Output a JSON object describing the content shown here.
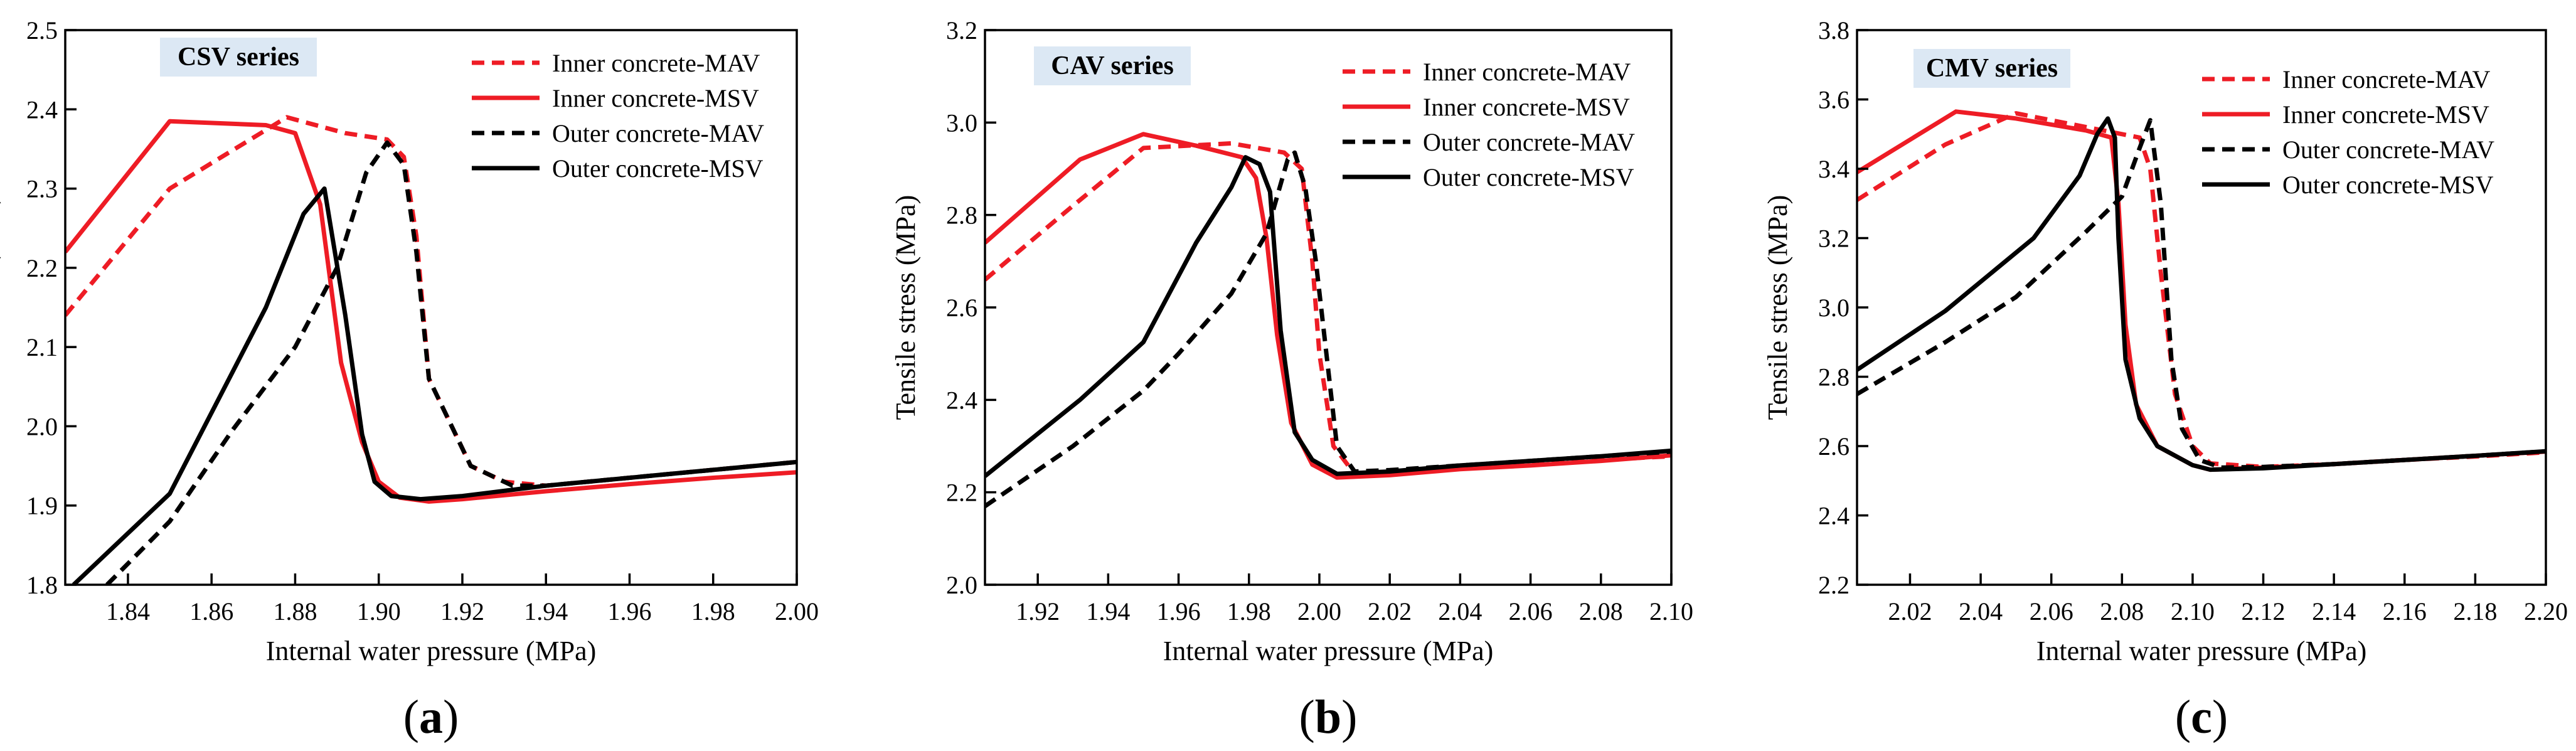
{
  "chart_data": [
    {
      "type": "line",
      "panel_label": "(a)",
      "series_label": "CSV series",
      "xlabel": "Internal water pressure (MPa)",
      "ylabel": "Tensile stress (MPa)",
      "xlim": [
        1.825,
        2.0
      ],
      "ylim": [
        1.8,
        2.5
      ],
      "xticks": [
        "1.84",
        "1.86",
        "1.88",
        "1.90",
        "1.92",
        "1.94",
        "1.96",
        "1.98",
        "2.00"
      ],
      "yticks": [
        "1.8",
        "1.9",
        "2.0",
        "2.1",
        "2.2",
        "2.3",
        "2.4",
        "2.5"
      ],
      "legend_position": "top-right",
      "series": [
        {
          "name": "Inner concrete-MAV",
          "color": "#ee1c25",
          "dash": "dashed",
          "points": [
            [
              1.825,
              2.14
            ],
            [
              1.85,
              2.3
            ],
            [
              1.878,
              2.39
            ],
            [
              1.892,
              2.37
            ],
            [
              1.902,
              2.362
            ],
            [
              1.906,
              2.34
            ],
            [
              1.909,
              2.24
            ],
            [
              1.912,
              2.06
            ],
            [
              1.922,
              1.95
            ],
            [
              1.93,
              1.93
            ],
            [
              1.94,
              1.925
            ],
            [
              1.96,
              1.935
            ],
            [
              1.98,
              1.945
            ],
            [
              2.0,
              1.955
            ]
          ]
        },
        {
          "name": "Inner concrete-MSV",
          "color": "#ee1c25",
          "dash": "solid",
          "points": [
            [
              1.825,
              2.22
            ],
            [
              1.85,
              2.385
            ],
            [
              1.873,
              2.38
            ],
            [
              1.88,
              2.37
            ],
            [
              1.886,
              2.28
            ],
            [
              1.891,
              2.08
            ],
            [
              1.896,
              1.98
            ],
            [
              1.9,
              1.93
            ],
            [
              1.905,
              1.91
            ],
            [
              1.912,
              1.905
            ],
            [
              1.92,
              1.908
            ],
            [
              1.94,
              1.918
            ],
            [
              1.96,
              1.927
            ],
            [
              1.98,
              1.935
            ],
            [
              2.0,
              1.942
            ]
          ]
        },
        {
          "name": "Outer concrete-MAV",
          "color": "#000000",
          "dash": "dashed",
          "points": [
            [
              1.835,
              1.8
            ],
            [
              1.85,
              1.88
            ],
            [
              1.865,
              1.995
            ],
            [
              1.88,
              2.1
            ],
            [
              1.89,
              2.2
            ],
            [
              1.897,
              2.32
            ],
            [
              1.902,
              2.358
            ],
            [
              1.906,
              2.33
            ],
            [
              1.909,
              2.22
            ],
            [
              1.912,
              2.06
            ],
            [
              1.922,
              1.95
            ],
            [
              1.932,
              1.925
            ],
            [
              1.94,
              1.925
            ],
            [
              1.96,
              1.935
            ],
            [
              1.98,
              1.945
            ],
            [
              2.0,
              1.955
            ]
          ]
        },
        {
          "name": "Outer concrete-MSV",
          "color": "#000000",
          "dash": "solid",
          "points": [
            [
              1.827,
              1.8
            ],
            [
              1.85,
              1.915
            ],
            [
              1.873,
              2.15
            ],
            [
              1.882,
              2.268
            ],
            [
              1.887,
              2.3
            ],
            [
              1.892,
              2.14
            ],
            [
              1.896,
              1.99
            ],
            [
              1.899,
              1.93
            ],
            [
              1.903,
              1.912
            ],
            [
              1.91,
              1.908
            ],
            [
              1.92,
              1.912
            ],
            [
              1.94,
              1.925
            ],
            [
              1.96,
              1.935
            ],
            [
              1.98,
              1.945
            ],
            [
              2.0,
              1.955
            ]
          ]
        }
      ]
    },
    {
      "type": "line",
      "panel_label": "(b)",
      "series_label": "CAV series",
      "xlabel": "Internal water pressure (MPa)",
      "ylabel": "Tensile stress (MPa)",
      "xlim": [
        1.905,
        2.1
      ],
      "ylim": [
        2.0,
        3.2
      ],
      "xticks": [
        "1.92",
        "1.94",
        "1.96",
        "1.98",
        "2.00",
        "2.02",
        "2.04",
        "2.06",
        "2.08",
        "2.10"
      ],
      "yticks": [
        "2.0",
        "2.2",
        "2.4",
        "2.6",
        "2.8",
        "3.0",
        "3.2"
      ],
      "legend_position": "top-right",
      "series": [
        {
          "name": "Inner concrete-MAV",
          "color": "#ee1c25",
          "dash": "dashed",
          "points": [
            [
              1.905,
              2.66
            ],
            [
              1.93,
              2.82
            ],
            [
              1.95,
              2.945
            ],
            [
              1.975,
              2.955
            ],
            [
              1.99,
              2.935
            ],
            [
              1.995,
              2.9
            ],
            [
              1.998,
              2.7
            ],
            [
              2.0,
              2.5
            ],
            [
              2.004,
              2.3
            ],
            [
              2.01,
              2.24
            ],
            [
              2.02,
              2.245
            ],
            [
              2.04,
              2.255
            ],
            [
              2.06,
              2.262
            ],
            [
              2.08,
              2.27
            ],
            [
              2.1,
              2.278
            ]
          ]
        },
        {
          "name": "Inner concrete-MSV",
          "color": "#ee1c25",
          "dash": "solid",
          "points": [
            [
              1.905,
              2.74
            ],
            [
              1.932,
              2.92
            ],
            [
              1.95,
              2.975
            ],
            [
              1.965,
              2.95
            ],
            [
              1.978,
              2.925
            ],
            [
              1.982,
              2.88
            ],
            [
              1.985,
              2.75
            ],
            [
              1.988,
              2.54
            ],
            [
              1.992,
              2.35
            ],
            [
              1.998,
              2.26
            ],
            [
              2.005,
              2.232
            ],
            [
              2.02,
              2.237
            ],
            [
              2.04,
              2.25
            ],
            [
              2.06,
              2.258
            ],
            [
              2.08,
              2.268
            ],
            [
              2.1,
              2.28
            ]
          ]
        },
        {
          "name": "Outer concrete-MAV",
          "color": "#000000",
          "dash": "dashed",
          "points": [
            [
              1.905,
              2.17
            ],
            [
              1.93,
              2.3
            ],
            [
              1.95,
              2.42
            ],
            [
              1.96,
              2.5
            ],
            [
              1.975,
              2.63
            ],
            [
              1.985,
              2.76
            ],
            [
              1.991,
              2.92
            ],
            [
              1.993,
              2.935
            ],
            [
              1.996,
              2.86
            ],
            [
              1.999,
              2.7
            ],
            [
              2.002,
              2.5
            ],
            [
              2.005,
              2.3
            ],
            [
              2.01,
              2.245
            ],
            [
              2.02,
              2.248
            ],
            [
              2.04,
              2.258
            ],
            [
              2.06,
              2.268
            ],
            [
              2.08,
              2.278
            ],
            [
              2.1,
              2.288
            ]
          ]
        },
        {
          "name": "Outer concrete-MSV",
          "color": "#000000",
          "dash": "solid",
          "points": [
            [
              1.905,
              2.235
            ],
            [
              1.932,
              2.4
            ],
            [
              1.95,
              2.525
            ],
            [
              1.965,
              2.74
            ],
            [
              1.975,
              2.86
            ],
            [
              1.979,
              2.925
            ],
            [
              1.983,
              2.91
            ],
            [
              1.986,
              2.85
            ],
            [
              1.989,
              2.55
            ],
            [
              1.993,
              2.33
            ],
            [
              1.998,
              2.27
            ],
            [
              2.005,
              2.24
            ],
            [
              2.02,
              2.245
            ],
            [
              2.04,
              2.258
            ],
            [
              2.06,
              2.268
            ],
            [
              2.08,
              2.278
            ],
            [
              2.1,
              2.29
            ]
          ]
        }
      ]
    },
    {
      "type": "line",
      "panel_label": "(c)",
      "series_label": "CMV series",
      "xlabel": "Internal water pressure (MPa)",
      "ylabel": "Tensile stress (MPa)",
      "xlim": [
        2.005,
        2.2
      ],
      "ylim": [
        2.2,
        3.8
      ],
      "xticks": [
        "2.02",
        "2.04",
        "2.06",
        "2.08",
        "2.10",
        "2.12",
        "2.14",
        "2.16",
        "2.18",
        "2.20"
      ],
      "yticks": [
        "2.2",
        "2.4",
        "2.6",
        "2.8",
        "3.0",
        "3.2",
        "3.4",
        "3.6",
        "3.8"
      ],
      "legend_position": "top-right",
      "series": [
        {
          "name": "Inner concrete-MAV",
          "color": "#ee1c25",
          "dash": "dashed",
          "points": [
            [
              2.005,
              3.31
            ],
            [
              2.03,
              3.47
            ],
            [
              2.05,
              3.56
            ],
            [
              2.07,
              3.52
            ],
            [
              2.085,
              3.49
            ],
            [
              2.088,
              3.4
            ],
            [
              2.091,
              3.1
            ],
            [
              2.095,
              2.75
            ],
            [
              2.1,
              2.6
            ],
            [
              2.105,
              2.55
            ],
            [
              2.12,
              2.54
            ],
            [
              2.14,
              2.548
            ],
            [
              2.16,
              2.56
            ],
            [
              2.18,
              2.57
            ],
            [
              2.2,
              2.582
            ]
          ]
        },
        {
          "name": "Inner concrete-MSV",
          "color": "#ee1c25",
          "dash": "solid",
          "points": [
            [
              2.005,
              3.39
            ],
            [
              2.033,
              3.565
            ],
            [
              2.05,
              3.545
            ],
            [
              2.07,
              3.51
            ],
            [
              2.077,
              3.49
            ],
            [
              2.079,
              3.3
            ],
            [
              2.081,
              2.95
            ],
            [
              2.084,
              2.72
            ],
            [
              2.09,
              2.6
            ],
            [
              2.1,
              2.545
            ],
            [
              2.105,
              2.532
            ],
            [
              2.12,
              2.538
            ],
            [
              2.14,
              2.548
            ],
            [
              2.16,
              2.56
            ],
            [
              2.18,
              2.572
            ],
            [
              2.2,
              2.584
            ]
          ]
        },
        {
          "name": "Outer concrete-MAV",
          "color": "#000000",
          "dash": "dashed",
          "points": [
            [
              2.005,
              2.75
            ],
            [
              2.03,
              2.9
            ],
            [
              2.05,
              3.03
            ],
            [
              2.07,
              3.22
            ],
            [
              2.08,
              3.32
            ],
            [
              2.085,
              3.46
            ],
            [
              2.088,
              3.54
            ],
            [
              2.091,
              3.3
            ],
            [
              2.094,
              2.85
            ],
            [
              2.097,
              2.65
            ],
            [
              2.102,
              2.56
            ],
            [
              2.108,
              2.538
            ],
            [
              2.12,
              2.54
            ],
            [
              2.14,
              2.548
            ],
            [
              2.16,
              2.56
            ],
            [
              2.18,
              2.572
            ],
            [
              2.2,
              2.585
            ]
          ]
        },
        {
          "name": "Outer concrete-MSV",
          "color": "#000000",
          "dash": "solid",
          "points": [
            [
              2.005,
              2.82
            ],
            [
              2.03,
              2.99
            ],
            [
              2.055,
              3.2
            ],
            [
              2.068,
              3.38
            ],
            [
              2.073,
              3.5
            ],
            [
              2.076,
              3.545
            ],
            [
              2.078,
              3.49
            ],
            [
              2.079,
              3.2
            ],
            [
              2.081,
              2.85
            ],
            [
              2.085,
              2.68
            ],
            [
              2.09,
              2.6
            ],
            [
              2.1,
              2.545
            ],
            [
              2.105,
              2.532
            ],
            [
              2.12,
              2.536
            ],
            [
              2.14,
              2.548
            ],
            [
              2.16,
              2.56
            ],
            [
              2.18,
              2.572
            ],
            [
              2.2,
              2.585
            ]
          ]
        }
      ]
    }
  ]
}
